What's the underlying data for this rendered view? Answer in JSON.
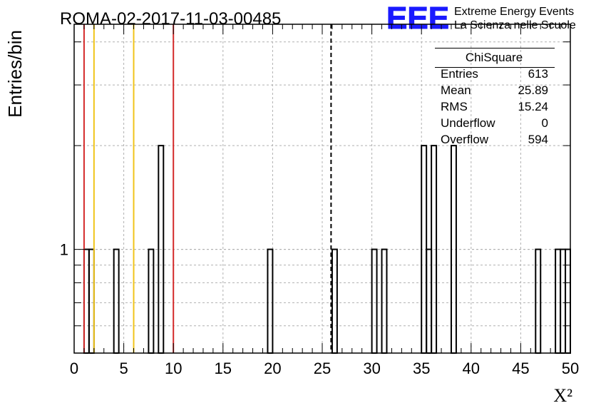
{
  "chart_data": {
    "type": "bar",
    "title": "ROMA-02-2017-11-03-00485",
    "ylabel": "Entries/bin",
    "xlabel": "X²",
    "xlim": [
      0,
      50
    ],
    "ylim_log": [
      0.5,
      4.5
    ],
    "log_y": true,
    "bin_width": 0.5,
    "x_ticks": [
      "0",
      "5",
      "10",
      "15",
      "20",
      "25",
      "30",
      "35",
      "40",
      "45",
      "50"
    ],
    "y_ticks": [
      "1"
    ],
    "grid": true,
    "bins": [
      {
        "x": 1.0,
        "value": 1
      },
      {
        "x": 1.5,
        "value": 1
      },
      {
        "x": 4.0,
        "value": 1
      },
      {
        "x": 7.5,
        "value": 1
      },
      {
        "x": 8.5,
        "value": 2
      },
      {
        "x": 19.5,
        "value": 1
      },
      {
        "x": 26.0,
        "value": 1
      },
      {
        "x": 30.0,
        "value": 1
      },
      {
        "x": 31.0,
        "value": 1
      },
      {
        "x": 35.0,
        "value": 2
      },
      {
        "x": 35.5,
        "value": 1
      },
      {
        "x": 36.0,
        "value": 2
      },
      {
        "x": 38.0,
        "value": 2
      },
      {
        "x": 46.5,
        "value": 1
      },
      {
        "x": 48.5,
        "value": 1
      },
      {
        "x": 49.0,
        "value": 1
      },
      {
        "x": 49.5,
        "value": 1
      }
    ],
    "vertical_lines": [
      {
        "x": 1.0,
        "color": "#d42a2a",
        "style": "solid"
      },
      {
        "x": 2.0,
        "color": "#f0c419",
        "style": "solid"
      },
      {
        "x": 6.0,
        "color": "#f0c419",
        "style": "solid"
      },
      {
        "x": 10.0,
        "color": "#d42a2a",
        "style": "solid"
      },
      {
        "x": 25.89,
        "color": "#000000",
        "style": "dashed"
      }
    ],
    "stats_box": {
      "title": "ChiSquare",
      "rows": [
        {
          "label": "Entries",
          "value": "613"
        },
        {
          "label": "Mean",
          "value": "25.89"
        },
        {
          "label": "RMS",
          "value": "15.24"
        },
        {
          "label": "Underflow",
          "value": "0"
        },
        {
          "label": "Overflow",
          "value": "594"
        }
      ]
    }
  },
  "logo": {
    "mark": "EEE",
    "line1": "Extreme Energy Events",
    "line2": "La Scienza nelle Scuole",
    "color": "#1a1aff"
  }
}
